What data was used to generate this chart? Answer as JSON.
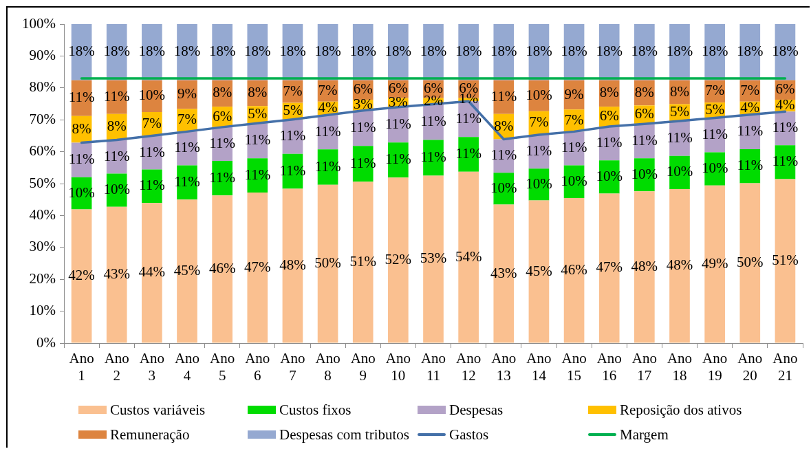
{
  "chart_data": {
    "type": "bar",
    "stacked": true,
    "categories": [
      "Ano 1",
      "Ano 2",
      "Ano 3",
      "Ano 4",
      "Ano 5",
      "Ano 6",
      "Ano 7",
      "Ano 8",
      "Ano 9",
      "Ano 10",
      "Ano 11",
      "Ano 12",
      "Ano 13",
      "Ano 14",
      "Ano 15",
      "Ano 16",
      "Ano 17",
      "Ano 18",
      "Ano 19",
      "Ano 20",
      "Ano 21"
    ],
    "ylim": [
      0,
      100
    ],
    "yticks": [
      {
        "value": 0,
        "label": "0%"
      },
      {
        "value": 10,
        "label": "10%"
      },
      {
        "value": 20,
        "label": "20%"
      },
      {
        "value": 30,
        "label": "30%"
      },
      {
        "value": 40,
        "label": "40%"
      },
      {
        "value": 50,
        "label": "50%"
      },
      {
        "value": 60,
        "label": "60%"
      },
      {
        "value": 70,
        "label": "70%"
      },
      {
        "value": 80,
        "label": "80%"
      },
      {
        "value": 90,
        "label": "90%"
      },
      {
        "value": 100,
        "label": "100%"
      }
    ],
    "legend": "bottom",
    "marker": "none",
    "series": [
      {
        "name": "Custos variáveis",
        "color": "#fac090",
        "values": [
          41.9,
          42.7,
          43.9,
          45.0,
          46.3,
          47.2,
          48.4,
          49.6,
          50.6,
          51.9,
          52.5,
          53.7,
          43.4,
          44.7,
          45.5,
          46.9,
          47.6,
          48.3,
          49.4,
          50.1,
          51.4
        ],
        "value_labels": [
          "42%",
          "43%",
          "44%",
          "45%",
          "46%",
          "47%",
          "48%",
          "50%",
          "51%",
          "52%",
          "53%",
          "54%",
          "43%",
          "45%",
          "46%",
          "47%",
          "48%",
          "48%",
          "49%",
          "50%",
          "51%"
        ]
      },
      {
        "name": "Custos fixos",
        "color": "#00dc00",
        "values": [
          10.1,
          10.4,
          10.5,
          10.7,
          10.8,
          10.7,
          10.9,
          11.1,
          11.2,
          11.0,
          11.2,
          10.9,
          10.0,
          10.0,
          10.2,
          10.4,
          10.3,
          10.4,
          10.4,
          10.7,
          10.6
        ],
        "value_labels": [
          "10%",
          "10%",
          "11%",
          "11%",
          "11%",
          "11%",
          "11%",
          "11%",
          "11%",
          "11%",
          "11%",
          "11%",
          "10%",
          "10%",
          "10%",
          "10%",
          "10%",
          "10%",
          "10%",
          "11%",
          "11%"
        ]
      },
      {
        "name": "Despesas",
        "color": "#b3a2c7",
        "values": [
          10.8,
          10.6,
          10.6,
          10.6,
          10.6,
          11.0,
          10.8,
          10.8,
          11.1,
          11.1,
          11.2,
          11.2,
          10.5,
          10.6,
          10.6,
          10.6,
          10.8,
          10.9,
          10.8,
          10.8,
          10.6
        ],
        "value_labels": [
          "11%",
          "11%",
          "11%",
          "11%",
          "11%",
          "11%",
          "11%",
          "11%",
          "11%",
          "11%",
          "11%",
          "11%",
          "11%",
          "11%",
          "11%",
          "11%",
          "11%",
          "11%",
          "11%",
          "11%",
          "11%"
        ]
      },
      {
        "name": "Reposição dos ativos",
        "color": "#ffc000",
        "values": [
          8.4,
          8.1,
          7.4,
          7.1,
          6.4,
          5.4,
          5.2,
          4.2,
          3.4,
          2.8,
          1.9,
          1.0,
          7.9,
          7.4,
          6.9,
          6.2,
          5.8,
          5.3,
          4.8,
          4.1,
          3.7
        ],
        "value_labels": [
          "8%",
          "8%",
          "7%",
          "7%",
          "6%",
          "5%",
          "5%",
          "4%",
          "3%",
          "3%",
          "2%",
          "1%",
          "8%",
          "7%",
          "7%",
          "6%",
          "6%",
          "5%",
          "5%",
          "4%",
          "4%"
        ]
      },
      {
        "name": "Remuneração",
        "color": "#dd843f",
        "values": [
          11.2,
          10.6,
          10.0,
          9.0,
          8.3,
          8.1,
          7.1,
          6.7,
          6.1,
          5.6,
          5.6,
          5.6,
          10.6,
          9.7,
          9.2,
          8.3,
          7.9,
          7.5,
          7.0,
          6.7,
          6.1
        ],
        "value_labels": [
          "11%",
          "11%",
          "10%",
          "9%",
          "8%",
          "8%",
          "7%",
          "7%",
          "6%",
          "6%",
          "6%",
          "6%",
          "11%",
          "10%",
          "9%",
          "8%",
          "8%",
          "8%",
          "7%",
          "7%",
          "6%"
        ]
      },
      {
        "name": "Despesas com tributos",
        "color": "#95a9d1",
        "values": [
          17.6,
          17.6,
          17.6,
          17.6,
          17.6,
          17.6,
          17.6,
          17.6,
          17.6,
          17.6,
          17.6,
          17.6,
          17.6,
          17.6,
          17.6,
          17.6,
          17.6,
          17.6,
          17.6,
          17.6,
          17.6
        ],
        "value_labels": [
          "18%",
          "18%",
          "18%",
          "18%",
          "18%",
          "18%",
          "18%",
          "18%",
          "18%",
          "18%",
          "18%",
          "18%",
          "18%",
          "18%",
          "18%",
          "18%",
          "18%",
          "18%",
          "18%",
          "18%",
          "18%"
        ]
      },
      {
        "name": "Gastos",
        "type": "line",
        "color": "#4470a8",
        "values": [
          62.8,
          63.7,
          65.0,
          66.3,
          67.7,
          68.9,
          70.1,
          71.5,
          72.9,
          74.0,
          74.9,
          75.8,
          63.9,
          65.3,
          66.3,
          67.9,
          68.7,
          69.6,
          70.6,
          71.6,
          72.6
        ]
      },
      {
        "name": "Margem",
        "type": "line",
        "color": "#00b050",
        "values": [
          83,
          83,
          83,
          83,
          83,
          83,
          83,
          83,
          83,
          83,
          83,
          83,
          83,
          83,
          83,
          83,
          83,
          83,
          83,
          83,
          83
        ]
      }
    ]
  }
}
